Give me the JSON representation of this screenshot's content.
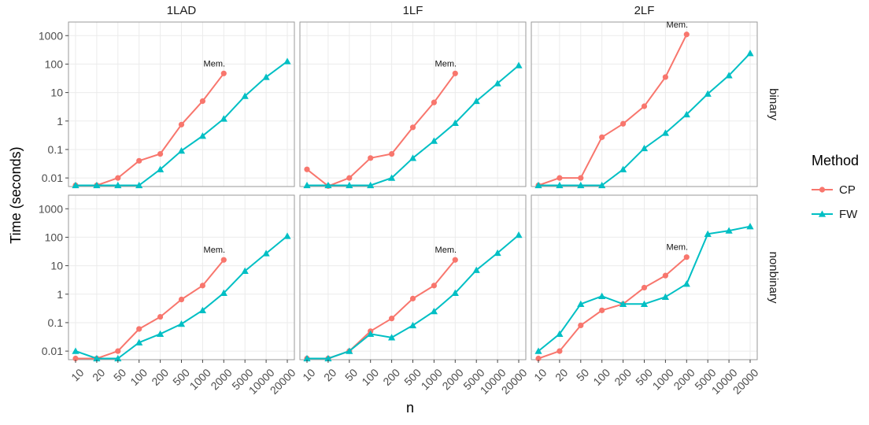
{
  "chart_data": {
    "type": "line",
    "xlabel": "n",
    "ylabel": "Time (seconds)",
    "x_tick_labels": [
      "10",
      "20",
      "50",
      "100",
      "200",
      "500",
      "1000",
      "2000",
      "5000",
      "10000",
      "20000"
    ],
    "y_tick_labels": [
      "0.01",
      "0.1",
      "1",
      "10",
      "100",
      "1000"
    ],
    "y_ticks": [
      0.01,
      0.1,
      1,
      10,
      100,
      1000
    ],
    "y_scale": "log10",
    "ylim": [
      0.005,
      3000
    ],
    "grid": true,
    "legend": {
      "title": "Method",
      "placement": "right",
      "entries": [
        {
          "name": "CP",
          "color": "#F8766D",
          "marker": "circle"
        },
        {
          "name": "FW",
          "color": "#00BFC4",
          "marker": "triangle"
        }
      ]
    },
    "columns": [
      "1LAD",
      "1LF",
      "2LF"
    ],
    "rows": [
      "binary",
      "nonbinary"
    ],
    "annotation_text": "Mem.",
    "panels": [
      {
        "column": "1LAD",
        "row": "binary",
        "series": [
          {
            "name": "CP",
            "x": [
              10,
              20,
              50,
              100,
              200,
              500,
              1000,
              2000
            ],
            "y": [
              0.0055,
              0.0055,
              0.01,
              0.04,
              0.07,
              0.75,
              5,
              47
            ]
          },
          {
            "name": "FW",
            "x": [
              10,
              20,
              50,
              100,
              200,
              500,
              1000,
              2000,
              5000,
              10000,
              20000
            ],
            "y": [
              0.0055,
              0.0055,
              0.0055,
              0.0055,
              0.02,
              0.09,
              0.3,
              1.2,
              7.5,
              35,
              125
            ]
          }
        ],
        "annotation": {
          "text": "Mem.",
          "x": 2000,
          "y": 47
        }
      },
      {
        "column": "1LF",
        "row": "binary",
        "series": [
          {
            "name": "CP",
            "x": [
              10,
              20,
              50,
              100,
              200,
              500,
              1000,
              2000
            ],
            "y": [
              0.02,
              0.0052,
              0.01,
              0.05,
              0.07,
              0.6,
              4.5,
              47
            ]
          },
          {
            "name": "FW",
            "x": [
              10,
              20,
              50,
              100,
              200,
              500,
              1000,
              2000,
              5000,
              10000,
              20000
            ],
            "y": [
              0.0055,
              0.0055,
              0.0055,
              0.0055,
              0.01,
              0.05,
              0.2,
              0.85,
              5,
              21,
              90
            ]
          }
        ],
        "annotation": {
          "text": "Mem.",
          "x": 2000,
          "y": 47
        }
      },
      {
        "column": "2LF",
        "row": "binary",
        "series": [
          {
            "name": "CP",
            "x": [
              10,
              20,
              50,
              100,
              200,
              500,
              1000,
              2000
            ],
            "y": [
              0.0055,
              0.01,
              0.01,
              0.27,
              0.8,
              3.3,
              35,
              1100
            ]
          },
          {
            "name": "FW",
            "x": [
              10,
              20,
              50,
              100,
              200,
              500,
              1000,
              2000,
              5000,
              10000,
              20000
            ],
            "y": [
              0.0055,
              0.0055,
              0.0055,
              0.0055,
              0.02,
              0.11,
              0.38,
              1.7,
              9,
              40,
              240
            ]
          }
        ],
        "annotation": {
          "text": "Mem.",
          "x": 2000,
          "y": 1100
        }
      },
      {
        "column": "1LAD",
        "row": "nonbinary",
        "series": [
          {
            "name": "CP",
            "x": [
              10,
              20,
              50,
              100,
              200,
              500,
              1000,
              2000
            ],
            "y": [
              0.0055,
              0.0055,
              0.01,
              0.06,
              0.16,
              0.65,
              2,
              16
            ]
          },
          {
            "name": "FW",
            "x": [
              10,
              20,
              50,
              100,
              200,
              500,
              1000,
              2000,
              5000,
              10000,
              20000
            ],
            "y": [
              0.01,
              0.0055,
              0.0055,
              0.02,
              0.04,
              0.09,
              0.27,
              1.1,
              6.5,
              27,
              110
            ]
          }
        ],
        "annotation": {
          "text": "Mem.",
          "x": 2000,
          "y": 16
        }
      },
      {
        "column": "1LF",
        "row": "nonbinary",
        "series": [
          {
            "name": "CP",
            "x": [
              10,
              20,
              50,
              100,
              200,
              500,
              1000,
              2000
            ],
            "y": [
              0.0055,
              0.0055,
              0.01,
              0.05,
              0.14,
              0.7,
              2,
              16
            ]
          },
          {
            "name": "FW",
            "x": [
              10,
              20,
              50,
              100,
              200,
              500,
              1000,
              2000,
              5000,
              10000,
              20000
            ],
            "y": [
              0.0055,
              0.0055,
              0.01,
              0.04,
              0.03,
              0.08,
              0.25,
              1.1,
              7,
              28,
              120
            ]
          }
        ],
        "annotation": {
          "text": "Mem.",
          "x": 2000,
          "y": 16
        }
      },
      {
        "column": "2LF",
        "row": "nonbinary",
        "series": [
          {
            "name": "CP",
            "x": [
              10,
              20,
              50,
              100,
              200,
              500,
              1000,
              2000
            ],
            "y": [
              0.0055,
              0.01,
              0.08,
              0.27,
              0.45,
              1.7,
              4.5,
              20
            ]
          },
          {
            "name": "FW",
            "x": [
              10,
              20,
              50,
              100,
              200,
              500,
              1000,
              2000,
              5000,
              10000,
              20000
            ],
            "y": [
              0.01,
              0.04,
              0.45,
              0.85,
              0.45,
              0.45,
              0.8,
              2.3,
              130,
              170,
              240
            ]
          }
        ],
        "annotation": {
          "text": "Mem.",
          "x": 2000,
          "y": 20
        }
      }
    ]
  }
}
